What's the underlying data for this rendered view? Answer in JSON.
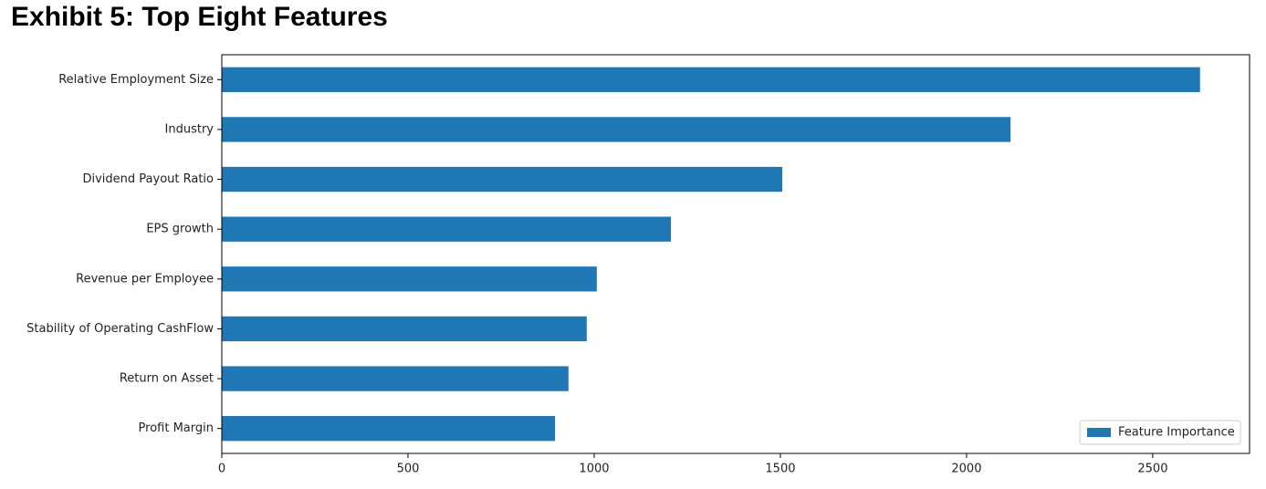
{
  "chart_data": {
    "type": "barh",
    "title": "Exhibit 5: Top Eight Features",
    "categories": [
      "Relative Employment Size",
      "Industry",
      "Dividend Payout Ratio",
      "EPS growth",
      "Revenue per Employee",
      "Stability of Operating CashFlow",
      "Return on Asset",
      "Profit Margin"
    ],
    "series": [
      {
        "name": "Feature Importance",
        "color": "#1f77b4",
        "values": [
          2627,
          2118,
          1505,
          1206,
          1007,
          980,
          931,
          895
        ]
      }
    ],
    "xlim": [
      0,
      2760
    ],
    "xticks": [
      0,
      500,
      1000,
      1500,
      2000,
      2500
    ],
    "legend": "lower right"
  }
}
